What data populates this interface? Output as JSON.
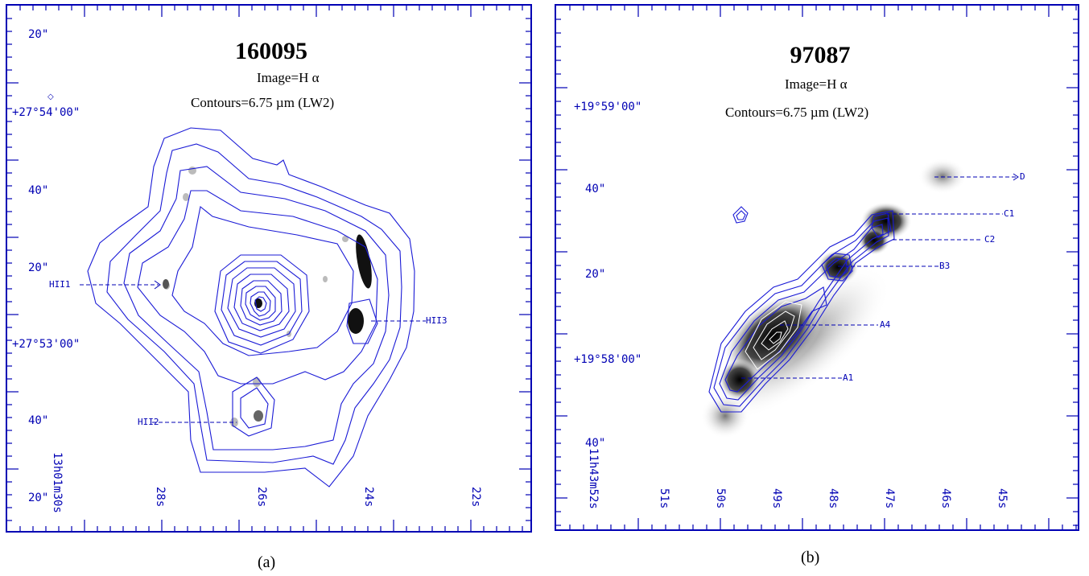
{
  "panel_a": {
    "title": "160095",
    "image_label": "Image=H α",
    "contours_label": "Contours=6.75   µm  (LW2)",
    "dec_labels": [
      "20\"",
      "+27°54'00\"",
      "40\"",
      "20\"",
      "+27°53'00\"",
      "40\"",
      "20\""
    ],
    "ra_labels": [
      "13h01m30s",
      "28s",
      "26s",
      "24s",
      "22s"
    ],
    "regions": [
      "HII1",
      "HII2",
      "HII3"
    ],
    "caption": "(a)"
  },
  "panel_b": {
    "title": "97087",
    "image_label": "Image=H α",
    "contours_label": "Contours=6.75   µm  (LW2)",
    "dec_labels": [
      "+19°59'00\"",
      "40\"",
      "20\"",
      "+19°58'00\"",
      "40\""
    ],
    "ra_labels": [
      "11h43m52s",
      "51s",
      "50s",
      "49s",
      "48s",
      "47s",
      "46s",
      "45s"
    ],
    "regions": [
      "D",
      "C1",
      "C2",
      "B3",
      "A4",
      "A1"
    ],
    "caption": "(b)"
  },
  "colors": {
    "frame": "#0000b4",
    "contour": "#1a1ad6"
  }
}
